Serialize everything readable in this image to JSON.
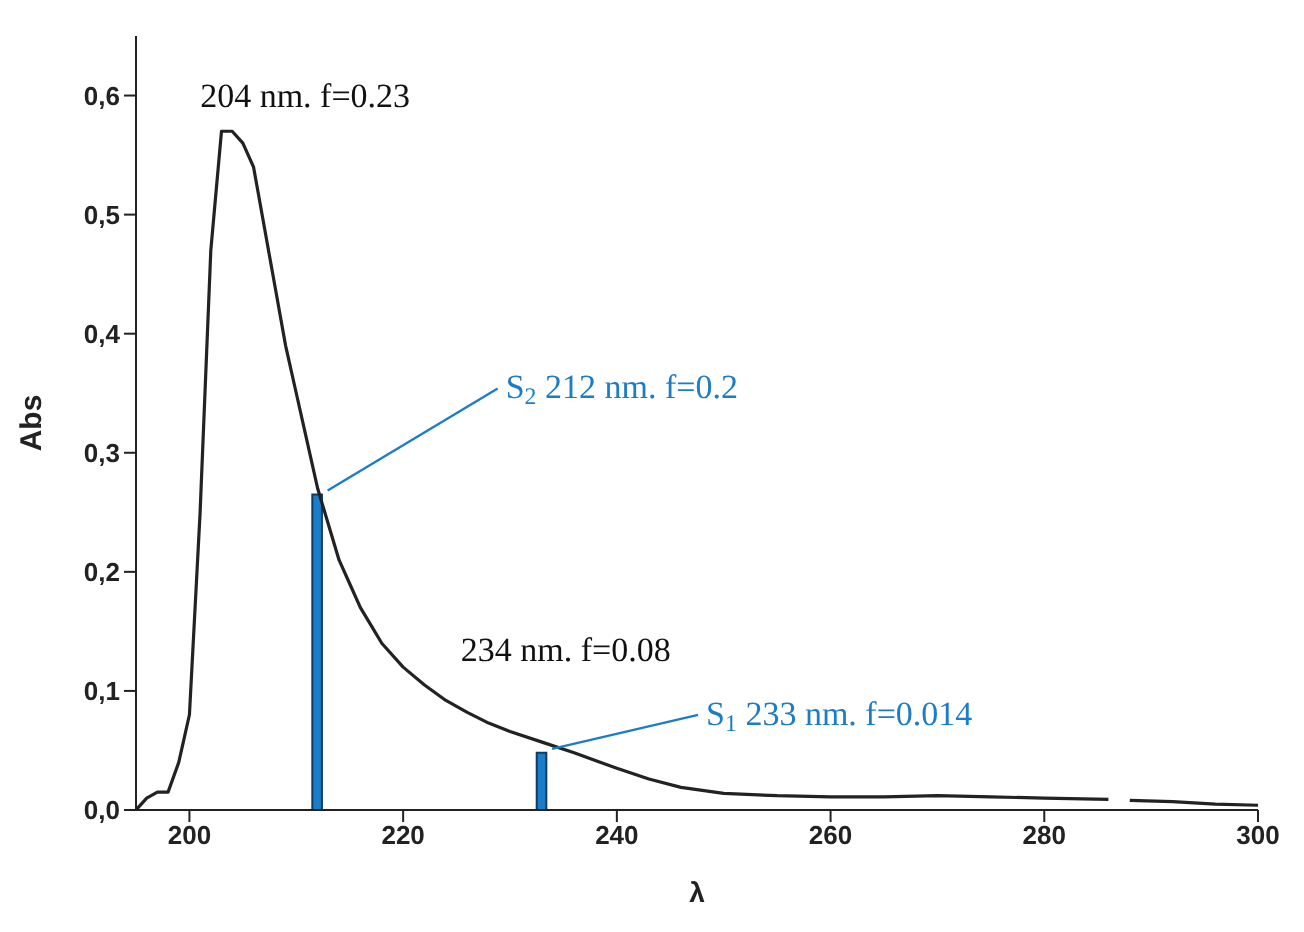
{
  "chart_data": {
    "type": "line",
    "xlabel": "λ",
    "ylabel": "Abs",
    "xlim": [
      195,
      300
    ],
    "xticks": [
      200,
      220,
      240,
      260,
      280,
      300
    ],
    "ylim": [
      0,
      0.65
    ],
    "yticks": [
      {
        "value": 0,
        "label": "0,0"
      },
      {
        "value": 0.1,
        "label": "0,1"
      },
      {
        "value": 0.2,
        "label": "0,2"
      },
      {
        "value": 0.3,
        "label": "0,3"
      },
      {
        "value": 0.4,
        "label": "0,4"
      },
      {
        "value": 0.5,
        "label": "0,5"
      },
      {
        "value": 0.6,
        "label": "0,6"
      }
    ],
    "marker": "none",
    "line_style": "solid",
    "series": [
      {
        "color": "#222222",
        "x": [
          195,
          196,
          197,
          198,
          199,
          200,
          201,
          202,
          203,
          204,
          205,
          206,
          207,
          208,
          209,
          210,
          211,
          212,
          213,
          214,
          215,
          216,
          217,
          218,
          220,
          222,
          224,
          226,
          228,
          230,
          233,
          236,
          240,
          243,
          246,
          250,
          255,
          260,
          265,
          270,
          275,
          280,
          286,
          287,
          288,
          292,
          296,
          300
        ],
        "values": [
          0.0,
          0.01,
          0.015,
          0.015,
          0.04,
          0.08,
          0.25,
          0.47,
          0.57,
          0.57,
          0.56,
          0.54,
          0.49,
          0.44,
          0.39,
          0.35,
          0.31,
          0.27,
          0.24,
          0.21,
          0.19,
          0.17,
          0.155,
          0.14,
          0.12,
          0.105,
          0.092,
          0.082,
          0.073,
          0.066,
          0.057,
          0.048,
          0.035,
          0.026,
          0.019,
          0.014,
          0.012,
          0.011,
          0.011,
          0.012,
          0.011,
          0.01,
          0.009,
          null,
          0.008,
          0.007,
          0.005,
          0.004
        ]
      },
      {
        "type": "bar",
        "color": "#1c7cc8",
        "x": [
          212,
          233
        ],
        "values": [
          0.265,
          0.048
        ]
      }
    ],
    "annotations": [
      {
        "text": "204 nm. f=0.23",
        "x": 204,
        "y": 0.57
      },
      {
        "text": "S$_{2}$ 212 nm. f=0.2",
        "x": 212,
        "y": 0.265
      },
      {
        "text": "234 nm. f=0.08",
        "x": 234,
        "y": 0.055
      },
      {
        "text": "S$_{1}$ 233 nm. f=0.014",
        "x": 233,
        "y": 0.048
      }
    ]
  }
}
